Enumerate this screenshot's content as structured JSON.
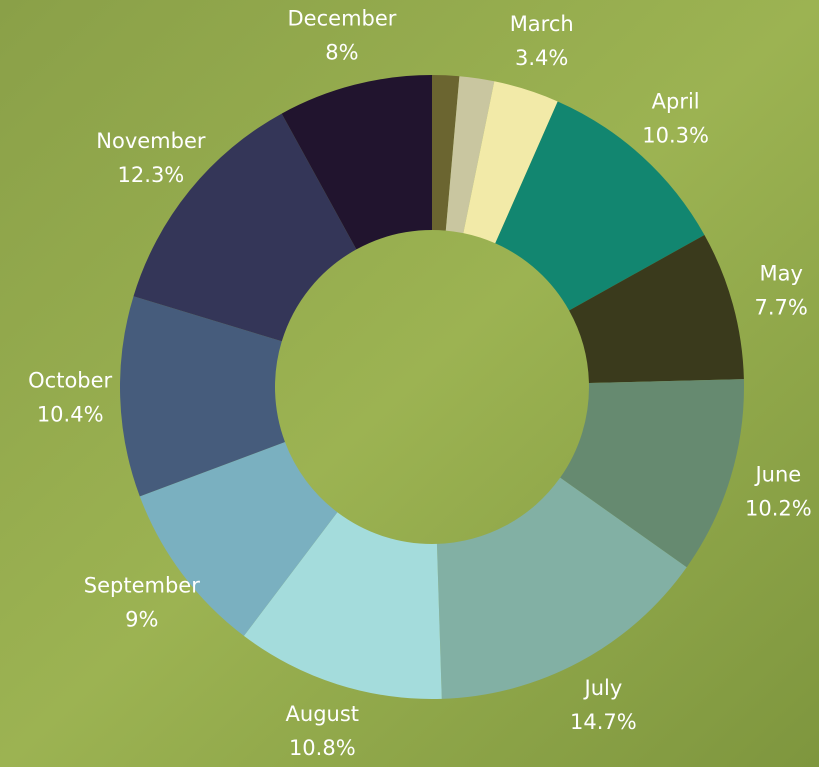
{
  "chart_data": {
    "type": "donut",
    "categories": [
      null,
      null,
      "March",
      "April",
      "May",
      "June",
      "July",
      "August",
      "September",
      "October",
      "November",
      "December"
    ],
    "values": [
      1.4,
      1.8,
      3.4,
      10.3,
      7.7,
      10.2,
      14.7,
      10.8,
      9,
      10.4,
      12.3,
      8
    ],
    "value_labels": [
      null,
      null,
      "3.4%",
      "10.3%",
      "7.7%",
      "10.2%",
      "14.7%",
      "10.8%",
      "9%",
      "10.4%",
      "12.3%",
      "8%"
    ],
    "colors": [
      "#6b6530",
      "#c9c6a0",
      "#f2eaa8",
      "#128670",
      "#3a3a1c",
      "#668a70",
      "#82b0a4",
      "#a4dcdc",
      "#7ab0c0",
      "#465c7c",
      "#343658",
      "#21142e"
    ]
  }
}
